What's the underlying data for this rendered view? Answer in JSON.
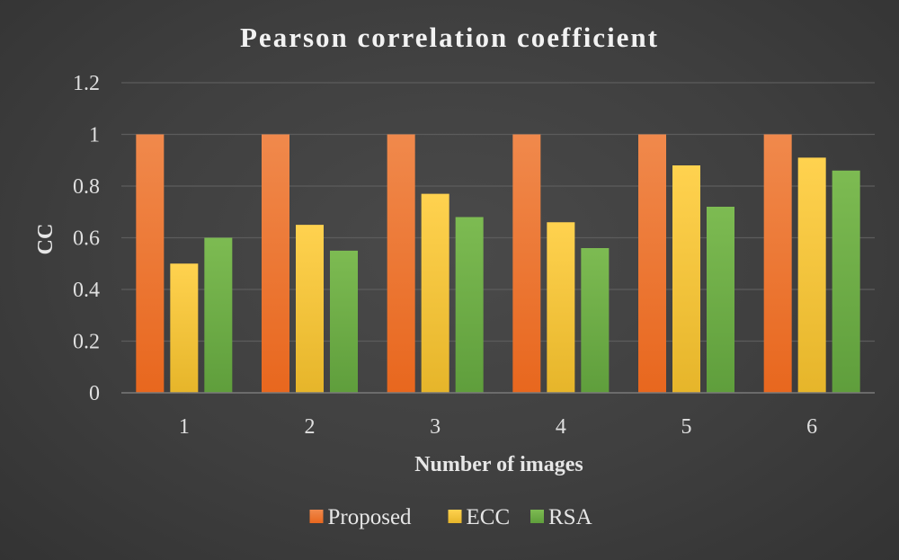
{
  "chart_data": {
    "type": "bar",
    "title": "Pearson correlation coefficient",
    "xlabel": "Number of images",
    "ylabel": "CC",
    "categories": [
      "1",
      "2",
      "3",
      "4",
      "5",
      "6"
    ],
    "series": [
      {
        "name": "Proposed",
        "values": [
          1,
          1,
          1,
          1,
          1,
          1
        ],
        "color_top": "#f0894c",
        "color_bottom": "#e8671e"
      },
      {
        "name": "ECC",
        "values": [
          0.5,
          0.65,
          0.77,
          0.66,
          0.88,
          0.91
        ],
        "color_top": "#ffd24f",
        "color_bottom": "#e6b52a"
      },
      {
        "name": "RSA",
        "values": [
          0.6,
          0.55,
          0.68,
          0.56,
          0.72,
          0.86
        ],
        "color_top": "#7dbb52",
        "color_bottom": "#5f9e3c"
      }
    ],
    "ylim": [
      0,
      1.2
    ],
    "yticks": [
      "0",
      "0.2",
      "0.4",
      "0.6",
      "0.8",
      "1",
      "1.2"
    ],
    "grid": true,
    "legend_position": "bottom"
  }
}
